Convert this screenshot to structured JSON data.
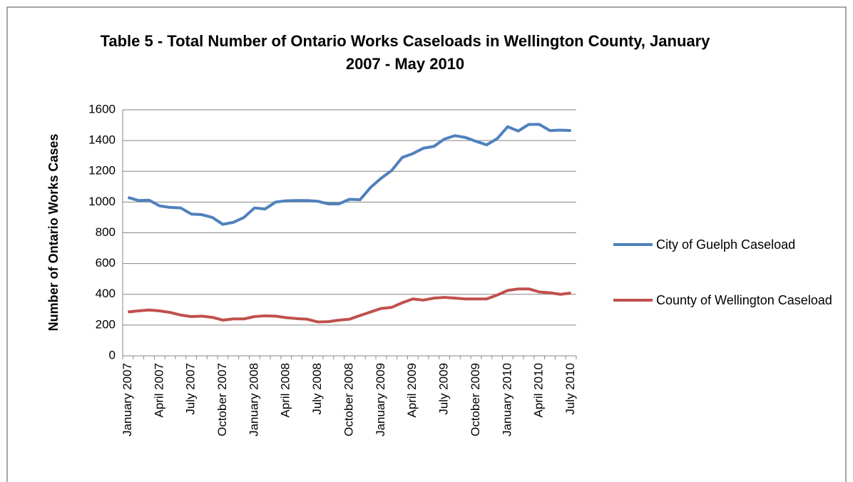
{
  "chart_data": {
    "type": "line",
    "title": "Table 5 - Total Number of Ontario Works Caseloads in Wellington County, January 2007 - May 2010",
    "y_label": "Number of Ontario Works Cases",
    "categories": [
      "January 2007",
      null,
      null,
      "April 2007",
      null,
      null,
      "July 2007",
      null,
      null,
      "October 2007",
      null,
      null,
      "January 2008",
      null,
      null,
      "April 2008",
      null,
      null,
      "July 2008",
      null,
      null,
      "October 2008",
      null,
      null,
      "January 2009",
      null,
      null,
      "April 2009",
      null,
      null,
      "July 2009",
      null,
      null,
      "October 2009",
      null,
      null,
      "January 2010",
      null,
      null,
      "April 2010",
      null,
      null,
      "July 2010"
    ],
    "series": [
      {
        "name": "City of Guelph Caseload",
        "color": "#4f81bd",
        "values": [
          1030,
          1010,
          1012,
          975,
          965,
          962,
          922,
          918,
          900,
          855,
          868,
          900,
          962,
          955,
          1000,
          1008,
          1010,
          1010,
          1005,
          988,
          988,
          1018,
          1015,
          1095,
          1155,
          1205,
          1290,
          1315,
          1350,
          1362,
          1410,
          1432,
          1420,
          1395,
          1372,
          1412,
          1490,
          1462,
          1505,
          1505,
          1465,
          1468,
          1465
        ]
      },
      {
        "name": "County of Wellington Caseload",
        "color": "#c0504d",
        "values": [
          285,
          292,
          298,
          292,
          282,
          265,
          255,
          258,
          250,
          232,
          240,
          240,
          255,
          260,
          258,
          248,
          242,
          238,
          220,
          222,
          232,
          238,
          262,
          285,
          308,
          315,
          345,
          370,
          362,
          375,
          380,
          375,
          370,
          370,
          370,
          395,
          425,
          435,
          435,
          415,
          410,
          400,
          408
        ]
      }
    ],
    "ylim": [
      0,
      1600
    ],
    "yticks": [
      0,
      200,
      400,
      600,
      800,
      1000,
      1200,
      1400,
      1600
    ],
    "grid": true,
    "legend": "right"
  }
}
